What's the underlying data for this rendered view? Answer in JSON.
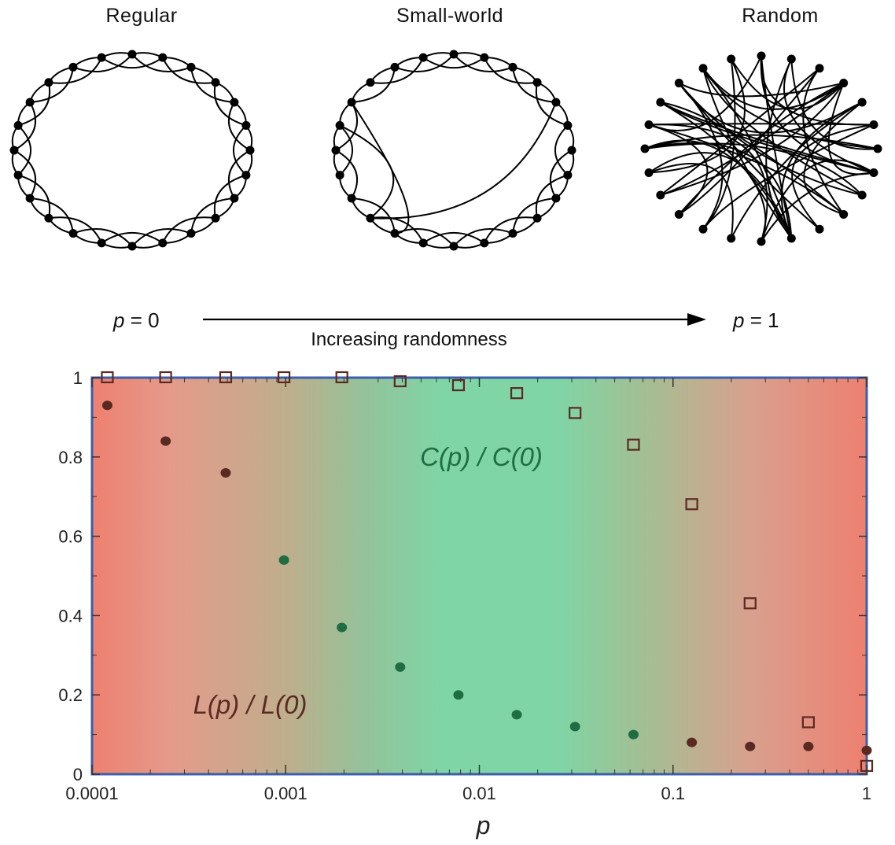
{
  "networks": {
    "regular_title": "Regular",
    "smallworld_title": "Small-world",
    "random_title": "Random"
  },
  "axis_strip": {
    "left_p": "p",
    "left_eq": " = 0",
    "right_p": "p",
    "right_eq": " = 1",
    "caption": "Increasing randomness"
  },
  "colors": {
    "edge": "#000000",
    "node": "#000000",
    "frame": "#3b5fa8",
    "bg_red": "#ee8070",
    "bg_green": "#7fd5a6",
    "c_series": "#1f6d43",
    "l_series": "#5a2a22"
  },
  "chart_data": {
    "type": "scatter",
    "xscale": "log",
    "xlim": [
      0.0001,
      1
    ],
    "ylim": [
      0,
      1
    ],
    "xlabel": "p",
    "ylabel": "",
    "xticks": [
      "0.0001",
      "0.001",
      "0.01",
      "0.1",
      "1"
    ],
    "yticks": [
      "0",
      "0.2",
      "0.4",
      "0.6",
      "0.8",
      "1"
    ],
    "series": [
      {
        "name": "C(p) / C(0)",
        "marker": "open-square",
        "x": [
          0.00012,
          0.00024,
          0.00049,
          0.00098,
          0.00195,
          0.0039,
          0.0078,
          0.0156,
          0.0312,
          0.0625,
          0.125,
          0.25,
          0.5,
          1.0
        ],
        "y": [
          1.0,
          1.0,
          1.0,
          1.0,
          1.0,
          0.99,
          0.98,
          0.96,
          0.91,
          0.83,
          0.68,
          0.43,
          0.13,
          0.02
        ]
      },
      {
        "name": "L(p) / L(0)",
        "marker": "filled-circle",
        "x": [
          0.00012,
          0.00024,
          0.00049,
          0.00098,
          0.00195,
          0.0039,
          0.0078,
          0.0156,
          0.0312,
          0.0625,
          0.125,
          0.25,
          0.5,
          1.0
        ],
        "y": [
          0.93,
          0.84,
          0.76,
          0.54,
          0.37,
          0.27,
          0.2,
          0.15,
          0.12,
          0.1,
          0.08,
          0.07,
          0.07,
          0.06
        ]
      }
    ],
    "annotations": [
      "C(p) / C(0)",
      "L(p) / L(0)"
    ],
    "grid": false
  }
}
